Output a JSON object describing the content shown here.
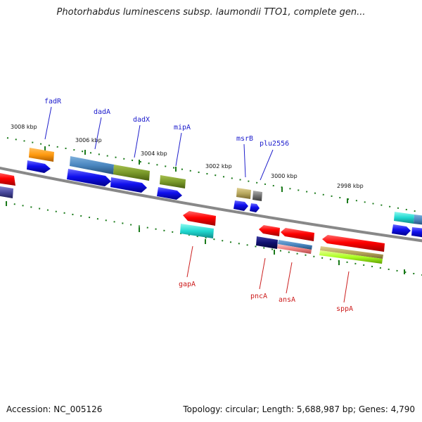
{
  "title": "Photorhabdus luminescens subsp. laumondii TTO1, complete gen...",
  "footer": {
    "accession": "Accession: NC_005126",
    "summary": "Topology: circular; Length: 5,688,987 bp; Genes: 4,790"
  },
  "kbp_labels": [
    "3008 kbp",
    "3006 kbp",
    "3004 kbp",
    "3002 kbp",
    "3000 kbp",
    "2998 kbp"
  ],
  "genes_top": [
    "fadR",
    "dadA",
    "dadX",
    "mipA",
    "msrB",
    "plu2556"
  ],
  "genes_bottom": [
    "gapA",
    "pncA",
    "ansA",
    "sppA"
  ],
  "colors": {
    "backbone": "#888888",
    "tick": "#1a7a1a",
    "cds": "#1010ee",
    "gene_label_top": "#1a1acc",
    "gene_label_bottom": "#cc1a1a"
  }
}
